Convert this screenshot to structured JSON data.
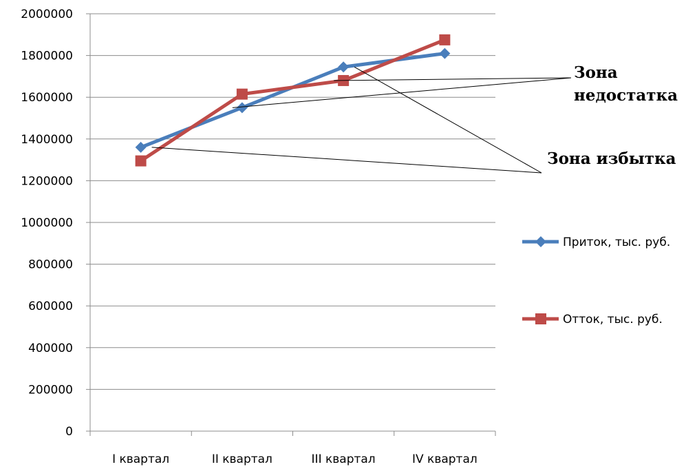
{
  "chart_data": {
    "type": "line",
    "categories": [
      "I квартал",
      "II квартал",
      "III квартал",
      "IV квартал"
    ],
    "series": [
      {
        "name": "Приток, тыс. руб.",
        "color": "#4A7EBB",
        "marker": "diamond",
        "values": [
          1360000,
          1550000,
          1745000,
          1810000
        ]
      },
      {
        "name": "Отток, тыс. руб.",
        "color": "#BE4B48",
        "marker": "square",
        "values": [
          1295000,
          1615000,
          1680000,
          1875000
        ]
      }
    ],
    "title": "",
    "xlabel": "",
    "ylabel": "",
    "ylim": [
      0,
      2000000
    ],
    "yticks": [
      "0",
      "200000",
      "400000",
      "600000",
      "800000",
      "1000000",
      "1200000",
      "1400000",
      "1600000",
      "1800000",
      "2000000"
    ],
    "grid": true,
    "legend_position": "right",
    "annotations": [
      {
        "text_lines": [
          "Зона",
          "недостатка"
        ],
        "points_to": [
          {
            "category": "II квартал",
            "value": 1550000
          },
          {
            "category": "III квартал",
            "value": 1680000
          }
        ]
      },
      {
        "text_lines": [
          "Зона избытка"
        ],
        "points_to": [
          {
            "category": "I квартал",
            "value": 1360000
          },
          {
            "category": "III квартал",
            "value": 1745000
          }
        ]
      }
    ]
  }
}
